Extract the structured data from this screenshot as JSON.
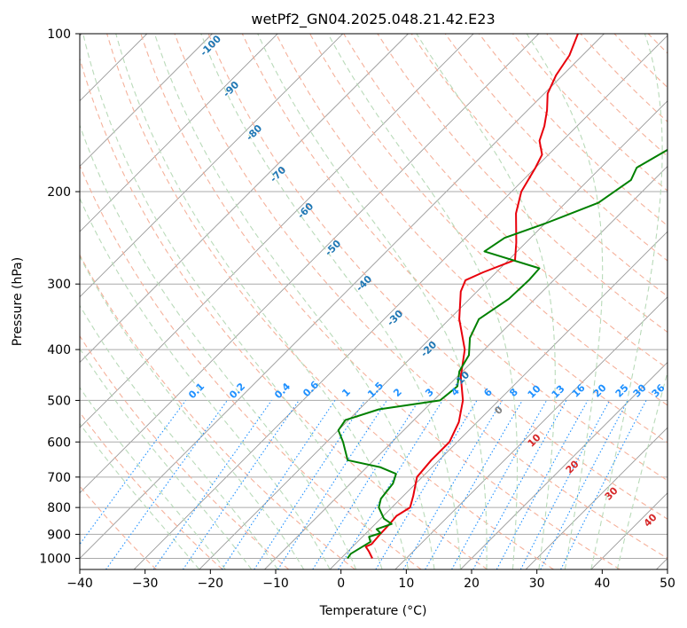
{
  "chart_data": {
    "type": "line",
    "subtype": "skew-t log-p diagram",
    "title": "wetPf2_GN04.2025.048.21.42.E23",
    "xlabel": "Temperature (°C)",
    "ylabel": "Pressure (hPa)",
    "xlim": [
      -40,
      50
    ],
    "ylim": [
      1050,
      100
    ],
    "y_scale": "log",
    "grid": true,
    "x_ticks": [
      "−40",
      "−30",
      "−20",
      "−10",
      "0",
      "10",
      "20",
      "30",
      "40",
      "50"
    ],
    "y_ticks": [
      "100",
      "200",
      "300",
      "400",
      "500",
      "600",
      "700",
      "800",
      "900",
      "1000"
    ],
    "dry_adiabat_labels": [
      "-100",
      "-90",
      "-80",
      "-70",
      "-60",
      "-50",
      "-40",
      "-30",
      "-20",
      "-10"
    ],
    "moist_adiabat_labels": [
      "0",
      "10",
      "20",
      "30",
      "40"
    ],
    "mixing_ratio_labels": [
      "0.1",
      "0.2",
      "0.4",
      "0.6",
      "1",
      "1.5",
      "2",
      "3",
      "4",
      "6",
      "8",
      "10",
      "13",
      "16",
      "20",
      "25",
      "30",
      "36"
    ],
    "colors": {
      "temperature": "#e8000b",
      "dewpoint": "#008000",
      "dry_adiabat": "#f5b19b",
      "moist_adiabat": "#b9dab9",
      "mixing_ratio": "#1e90ff",
      "isotherm": "#999999",
      "dry_adiabat_label": "#1f77b4",
      "moist_adiabat_label": "#d62728",
      "zero_moist_label": "#808080"
    },
    "series": [
      {
        "name": "Temperature",
        "points": [
          {
            "p": 1000,
            "t": 4.8
          },
          {
            "p": 970,
            "t": 3.2
          },
          {
            "p": 950,
            "t": 2.0
          },
          {
            "p": 940,
            "t": 2.5
          },
          {
            "p": 900,
            "t": 2.3
          },
          {
            "p": 860,
            "t": 2.2
          },
          {
            "p": 830,
            "t": 2.0
          },
          {
            "p": 800,
            "t": 2.8
          },
          {
            "p": 760,
            "t": 1.5
          },
          {
            "p": 700,
            "t": -0.8
          },
          {
            "p": 650,
            "t": -1.2
          },
          {
            "p": 600,
            "t": -1.2
          },
          {
            "p": 550,
            "t": -2.8
          },
          {
            "p": 500,
            "t": -5.5
          },
          {
            "p": 450,
            "t": -9.5
          },
          {
            "p": 400,
            "t": -13.0
          },
          {
            "p": 350,
            "t": -18.5
          },
          {
            "p": 310,
            "t": -22.5
          },
          {
            "p": 295,
            "t": -23.5
          },
          {
            "p": 285,
            "t": -22.0
          },
          {
            "p": 270,
            "t": -19.0
          },
          {
            "p": 250,
            "t": -21.5
          },
          {
            "p": 220,
            "t": -26.0
          },
          {
            "p": 200,
            "t": -28.5
          },
          {
            "p": 180,
            "t": -30.0
          },
          {
            "p": 170,
            "t": -31.0
          },
          {
            "p": 160,
            "t": -33.5
          },
          {
            "p": 150,
            "t": -35.0
          },
          {
            "p": 140,
            "t": -37.0
          },
          {
            "p": 130,
            "t": -39.5
          },
          {
            "p": 120,
            "t": -41.0
          },
          {
            "p": 110,
            "t": -42.0
          },
          {
            "p": 100,
            "t": -44.0
          }
        ]
      },
      {
        "name": "Dewpoint",
        "points": [
          {
            "p": 1000,
            "t": 1.0
          },
          {
            "p": 980,
            "t": 0.8
          },
          {
            "p": 950,
            "t": 1.5
          },
          {
            "p": 930,
            "t": 2.0
          },
          {
            "p": 910,
            "t": 1.0
          },
          {
            "p": 895,
            "t": 2.2
          },
          {
            "p": 880,
            "t": 1.0
          },
          {
            "p": 860,
            "t": 2.5
          },
          {
            "p": 840,
            "t": 0.5
          },
          {
            "p": 800,
            "t": -2.0
          },
          {
            "p": 770,
            "t": -3.0
          },
          {
            "p": 720,
            "t": -3.5
          },
          {
            "p": 690,
            "t": -4.5
          },
          {
            "p": 670,
            "t": -8.0
          },
          {
            "p": 650,
            "t": -14.0
          },
          {
            "p": 600,
            "t": -17.5
          },
          {
            "p": 570,
            "t": -20.0
          },
          {
            "p": 545,
            "t": -20.5
          },
          {
            "p": 520,
            "t": -17.0
          },
          {
            "p": 500,
            "t": -9.0
          },
          {
            "p": 470,
            "t": -8.5
          },
          {
            "p": 440,
            "t": -10.5
          },
          {
            "p": 410,
            "t": -11.5
          },
          {
            "p": 380,
            "t": -14.0
          },
          {
            "p": 350,
            "t": -15.5
          },
          {
            "p": 320,
            "t": -14.0
          },
          {
            "p": 295,
            "t": -13.8
          },
          {
            "p": 280,
            "t": -14.0
          },
          {
            "p": 260,
            "t": -25.0
          },
          {
            "p": 245,
            "t": -24.0
          },
          {
            "p": 230,
            "t": -20.0
          },
          {
            "p": 210,
            "t": -15.0
          },
          {
            "p": 190,
            "t": -13.5
          },
          {
            "p": 180,
            "t": -14.5
          },
          {
            "p": 160,
            "t": -11.5
          },
          {
            "p": 140,
            "t": -9.0
          },
          {
            "p": 120,
            "t": -8.0
          },
          {
            "p": 110,
            "t": -7.5
          },
          {
            "p": 100,
            "t": -6.5
          }
        ]
      }
    ]
  }
}
